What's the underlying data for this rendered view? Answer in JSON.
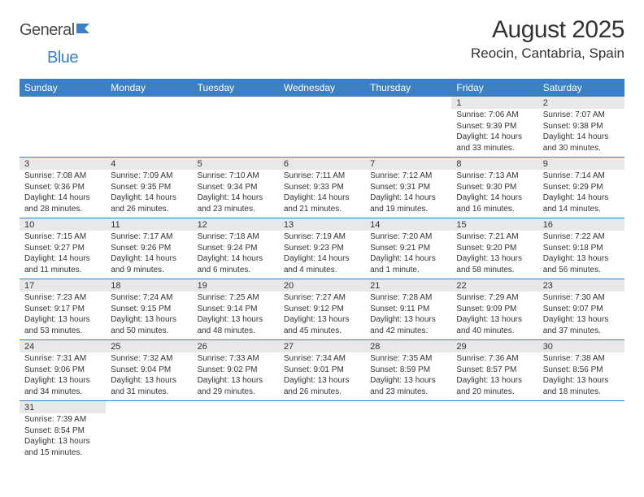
{
  "logo": {
    "text1": "General",
    "text2": "Blue"
  },
  "title": "August 2025",
  "location": "Reocin, Cantabria, Spain",
  "header_bg": "#3b7fc4",
  "daynum_bg": "#e8e8e8",
  "divider_color": "#3b7fc4",
  "days": [
    "Sunday",
    "Monday",
    "Tuesday",
    "Wednesday",
    "Thursday",
    "Friday",
    "Saturday"
  ],
  "weeks": [
    [
      null,
      null,
      null,
      null,
      null,
      {
        "n": "1",
        "sr": "7:06 AM",
        "ss": "9:39 PM",
        "dl": "14 hours and 33 minutes."
      },
      {
        "n": "2",
        "sr": "7:07 AM",
        "ss": "9:38 PM",
        "dl": "14 hours and 30 minutes."
      }
    ],
    [
      {
        "n": "3",
        "sr": "7:08 AM",
        "ss": "9:36 PM",
        "dl": "14 hours and 28 minutes."
      },
      {
        "n": "4",
        "sr": "7:09 AM",
        "ss": "9:35 PM",
        "dl": "14 hours and 26 minutes."
      },
      {
        "n": "5",
        "sr": "7:10 AM",
        "ss": "9:34 PM",
        "dl": "14 hours and 23 minutes."
      },
      {
        "n": "6",
        "sr": "7:11 AM",
        "ss": "9:33 PM",
        "dl": "14 hours and 21 minutes."
      },
      {
        "n": "7",
        "sr": "7:12 AM",
        "ss": "9:31 PM",
        "dl": "14 hours and 19 minutes."
      },
      {
        "n": "8",
        "sr": "7:13 AM",
        "ss": "9:30 PM",
        "dl": "14 hours and 16 minutes."
      },
      {
        "n": "9",
        "sr": "7:14 AM",
        "ss": "9:29 PM",
        "dl": "14 hours and 14 minutes."
      }
    ],
    [
      {
        "n": "10",
        "sr": "7:15 AM",
        "ss": "9:27 PM",
        "dl": "14 hours and 11 minutes."
      },
      {
        "n": "11",
        "sr": "7:17 AM",
        "ss": "9:26 PM",
        "dl": "14 hours and 9 minutes."
      },
      {
        "n": "12",
        "sr": "7:18 AM",
        "ss": "9:24 PM",
        "dl": "14 hours and 6 minutes."
      },
      {
        "n": "13",
        "sr": "7:19 AM",
        "ss": "9:23 PM",
        "dl": "14 hours and 4 minutes."
      },
      {
        "n": "14",
        "sr": "7:20 AM",
        "ss": "9:21 PM",
        "dl": "14 hours and 1 minute."
      },
      {
        "n": "15",
        "sr": "7:21 AM",
        "ss": "9:20 PM",
        "dl": "13 hours and 58 minutes."
      },
      {
        "n": "16",
        "sr": "7:22 AM",
        "ss": "9:18 PM",
        "dl": "13 hours and 56 minutes."
      }
    ],
    [
      {
        "n": "17",
        "sr": "7:23 AM",
        "ss": "9:17 PM",
        "dl": "13 hours and 53 minutes."
      },
      {
        "n": "18",
        "sr": "7:24 AM",
        "ss": "9:15 PM",
        "dl": "13 hours and 50 minutes."
      },
      {
        "n": "19",
        "sr": "7:25 AM",
        "ss": "9:14 PM",
        "dl": "13 hours and 48 minutes."
      },
      {
        "n": "20",
        "sr": "7:27 AM",
        "ss": "9:12 PM",
        "dl": "13 hours and 45 minutes."
      },
      {
        "n": "21",
        "sr": "7:28 AM",
        "ss": "9:11 PM",
        "dl": "13 hours and 42 minutes."
      },
      {
        "n": "22",
        "sr": "7:29 AM",
        "ss": "9:09 PM",
        "dl": "13 hours and 40 minutes."
      },
      {
        "n": "23",
        "sr": "7:30 AM",
        "ss": "9:07 PM",
        "dl": "13 hours and 37 minutes."
      }
    ],
    [
      {
        "n": "24",
        "sr": "7:31 AM",
        "ss": "9:06 PM",
        "dl": "13 hours and 34 minutes."
      },
      {
        "n": "25",
        "sr": "7:32 AM",
        "ss": "9:04 PM",
        "dl": "13 hours and 31 minutes."
      },
      {
        "n": "26",
        "sr": "7:33 AM",
        "ss": "9:02 PM",
        "dl": "13 hours and 29 minutes."
      },
      {
        "n": "27",
        "sr": "7:34 AM",
        "ss": "9:01 PM",
        "dl": "13 hours and 26 minutes."
      },
      {
        "n": "28",
        "sr": "7:35 AM",
        "ss": "8:59 PM",
        "dl": "13 hours and 23 minutes."
      },
      {
        "n": "29",
        "sr": "7:36 AM",
        "ss": "8:57 PM",
        "dl": "13 hours and 20 minutes."
      },
      {
        "n": "30",
        "sr": "7:38 AM",
        "ss": "8:56 PM",
        "dl": "13 hours and 18 minutes."
      }
    ],
    [
      {
        "n": "31",
        "sr": "7:39 AM",
        "ss": "8:54 PM",
        "dl": "13 hours and 15 minutes."
      },
      null,
      null,
      null,
      null,
      null,
      null
    ]
  ],
  "labels": {
    "sunrise": "Sunrise: ",
    "sunset": "Sunset: ",
    "daylight": "Daylight: "
  }
}
